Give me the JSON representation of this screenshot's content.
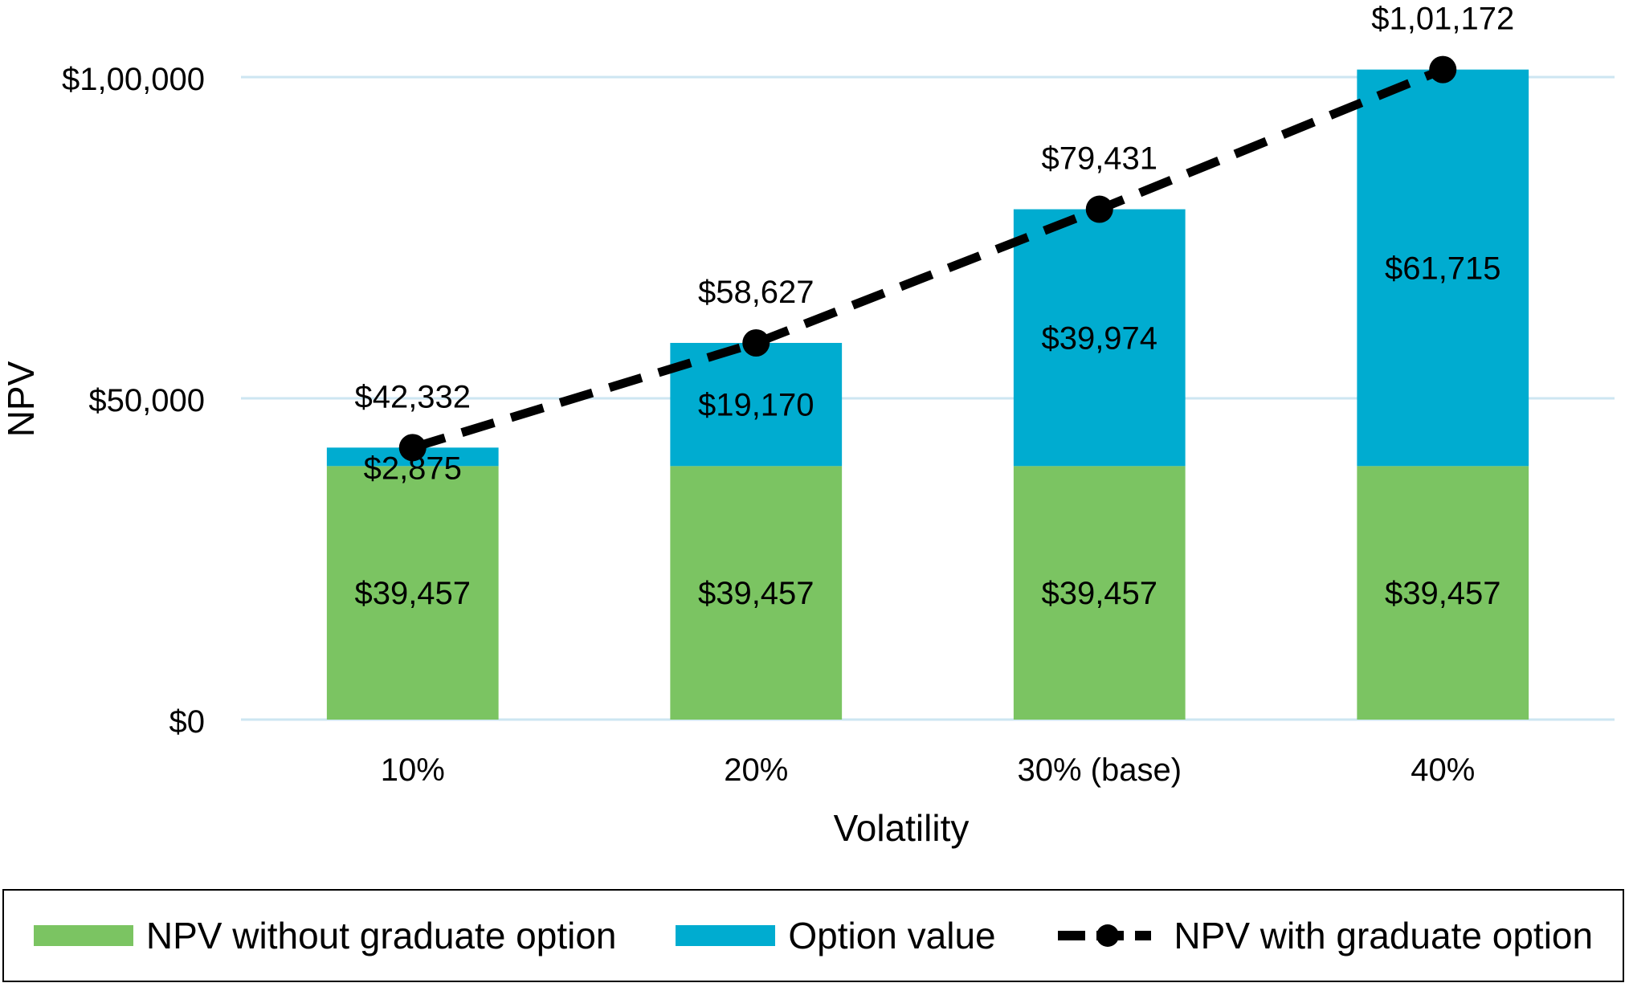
{
  "chart_data": {
    "type": "bar",
    "stacked": true,
    "categories": [
      "10%",
      "20%",
      "30% (base)",
      "40%"
    ],
    "series": [
      {
        "name": "NPV without graduate option",
        "kind": "bar",
        "color": "#7bc462",
        "values": [
          39457,
          39457,
          39457,
          39457
        ],
        "labels": [
          "$39,457",
          "$39,457",
          "$39,457",
          "$39,457"
        ]
      },
      {
        "name": "Option value",
        "kind": "bar",
        "color": "#00acd0",
        "values": [
          2875,
          19170,
          39974,
          61715
        ],
        "labels": [
          "$2,875",
          "$19,170",
          "$39,974",
          "$61,715"
        ]
      },
      {
        "name": "NPV with graduate option",
        "kind": "line",
        "color": "#000000",
        "style": "dashed",
        "values": [
          42332,
          58627,
          79431,
          101172
        ],
        "labels": [
          "$42,332",
          "$58,627",
          "$79,431",
          "$1,01,172"
        ]
      }
    ],
    "xlabel": "Volatility",
    "ylabel": "NPV",
    "ylim": [
      0,
      100000
    ],
    "yticks": [
      0,
      50000,
      100000
    ],
    "ytick_labels": [
      "$0",
      "$50,000",
      "$1,00,000"
    ],
    "grid": true,
    "gridline_color": "#cde6f2",
    "legend_position": "bottom"
  }
}
